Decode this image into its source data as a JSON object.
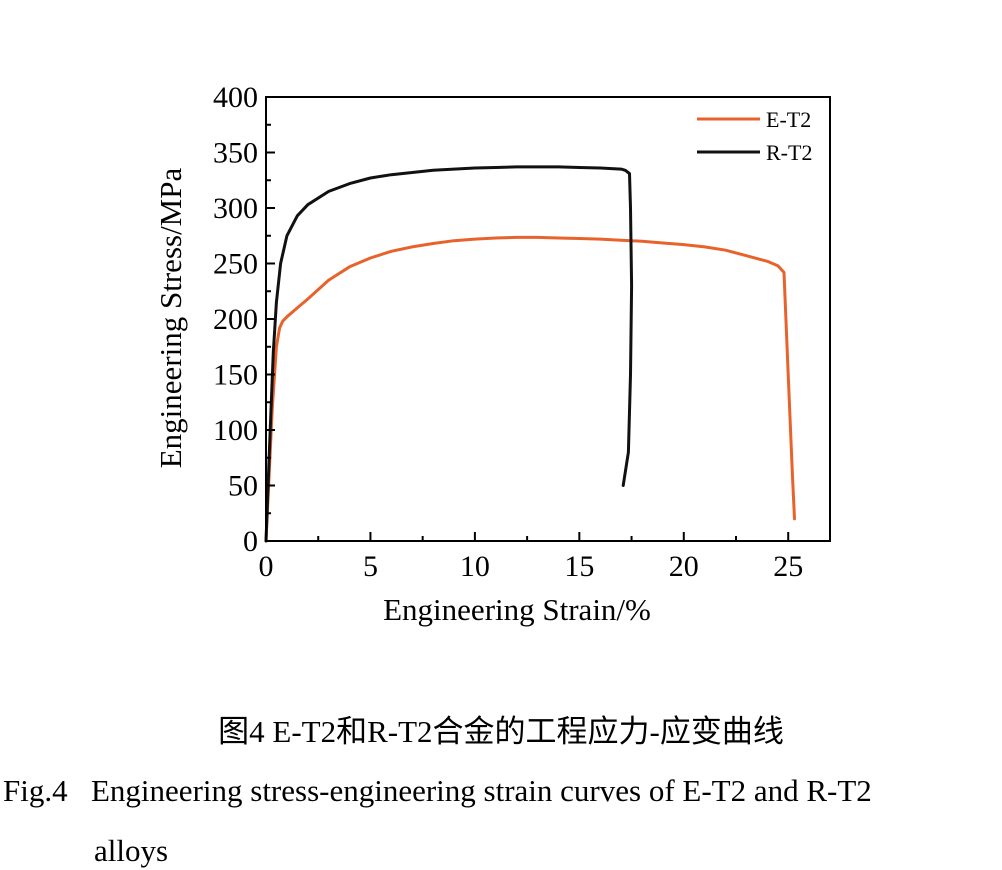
{
  "chart_data": {
    "type": "line",
    "title": "",
    "xlabel": "Engineering Strain/%",
    "ylabel": "Engineering Stress/MPa",
    "xlim": [
      0,
      27
    ],
    "ylim": [
      0,
      400
    ],
    "xticks": [
      0,
      5,
      10,
      15,
      20,
      25
    ],
    "yticks": [
      0,
      50,
      100,
      150,
      200,
      250,
      300,
      350,
      400
    ],
    "xtick_labels": [
      "0",
      "5",
      "10",
      "15",
      "20",
      "25"
    ],
    "ytick_labels": [
      "0",
      "50",
      "100",
      "150",
      "200",
      "250",
      "300",
      "350",
      "400"
    ],
    "grid": false,
    "legend_position": "top-right",
    "series": [
      {
        "name": "E-T2",
        "color": "#e8622c",
        "x": [
          0,
          0.3,
          0.5,
          0.65,
          0.8,
          1.0,
          1.5,
          2.0,
          3.0,
          4.0,
          5.0,
          6.0,
          7.0,
          8.0,
          9.0,
          10.0,
          11.0,
          12.0,
          13.0,
          14.0,
          15.0,
          16.0,
          17.0,
          18.0,
          19.0,
          20.0,
          21.0,
          22.0,
          23.0,
          24.0,
          24.5,
          24.8,
          25.0,
          25.2,
          25.3
        ],
        "y": [
          0,
          120,
          175,
          192,
          198,
          202,
          210,
          218,
          235,
          247,
          255,
          261,
          265,
          268,
          270.5,
          272,
          273,
          273.5,
          273.5,
          273,
          272.5,
          272,
          271,
          270,
          268.5,
          267,
          265,
          262,
          257,
          252,
          248,
          242,
          150,
          60,
          20
        ]
      },
      {
        "name": "R-T2",
        "color": "#111111",
        "x": [
          0,
          0.2,
          0.35,
          0.5,
          0.7,
          1.0,
          1.5,
          2.0,
          3.0,
          4.0,
          5.0,
          6.0,
          7.0,
          8.0,
          9.0,
          10.0,
          11.0,
          12.0,
          13.0,
          14.0,
          15.0,
          16.0,
          17.0,
          17.2,
          17.4,
          17.45,
          17.5,
          17.45,
          17.35,
          17.1
        ],
        "y": [
          0,
          100,
          170,
          215,
          250,
          275,
          293,
          303,
          315,
          322,
          327,
          330,
          332,
          334,
          335,
          336,
          336.5,
          337,
          337,
          337,
          336.5,
          336,
          335,
          334,
          331,
          300,
          230,
          150,
          80,
          50
        ]
      }
    ]
  },
  "caption": {
    "cn": "图4  E-T2和R-T2合金的工程应力-应变曲线",
    "en_number": "Fig.4",
    "en_line1": "Engineering stress-engineering strain curves of E-T2 and R-T2",
    "en_line2": "alloys"
  }
}
